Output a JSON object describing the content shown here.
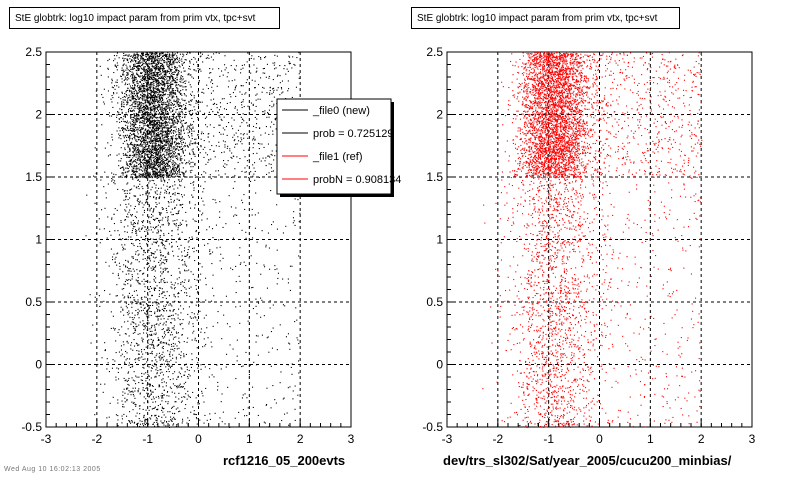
{
  "chart_data": [
    {
      "type": "scatter",
      "title": "StE globtrk: log10 impact param from prim vtx, tpc+svt",
      "xlabel": "rcf1216_05_200evts",
      "ylabel": "",
      "xlim": [
        -3,
        3
      ],
      "ylim": [
        -0.5,
        2.5
      ],
      "xticks": [
        "-3",
        "-2",
        "-1",
        "0",
        "1",
        "2",
        "3"
      ],
      "yticks": [
        "-0.5",
        "0",
        "0.5",
        "1",
        "1.5",
        "2",
        "2.5"
      ],
      "grid": true,
      "marker_color": "#000000",
      "legend_position": "top-right",
      "legend": [
        {
          "label": "_file0 (new)",
          "color": "#000000"
        },
        {
          "label": "prob = 0.725129",
          "color": "#000000"
        },
        {
          "label": "_file1 (ref)",
          "color": "#ff0000"
        },
        {
          "label": "probN = 0.908134",
          "color": "#ff0000"
        }
      ],
      "distribution": {
        "x_peak": -0.9,
        "x_spread": 0.45,
        "dense_band": [
          1.5,
          2.5
        ],
        "tail_x_range": [
          -1.5,
          2.0
        ]
      }
    },
    {
      "type": "scatter",
      "title": "StE globtrk: log10 impact param from prim vtx, tpc+svt",
      "xlabel": "dev/trs_sl302/Sat/year_2005/cucu200_minbias/",
      "ylabel": "",
      "xlim": [
        -3,
        3
      ],
      "ylim": [
        -0.5,
        2.5
      ],
      "xticks": [
        "-3",
        "-2",
        "-1",
        "0",
        "1",
        "2",
        "3"
      ],
      "yticks": [
        "-0.5",
        "0",
        "0.5",
        "1",
        "1.5",
        "2",
        "2.5"
      ],
      "grid": true,
      "marker_color": "#ff0000",
      "distribution": {
        "x_peak": -0.9,
        "x_spread": 0.45,
        "dense_band": [
          1.5,
          2.5
        ],
        "tail_x_range": [
          -1.5,
          2.0
        ]
      }
    }
  ],
  "footer": "Wed Aug 10 16:02:13 2005"
}
